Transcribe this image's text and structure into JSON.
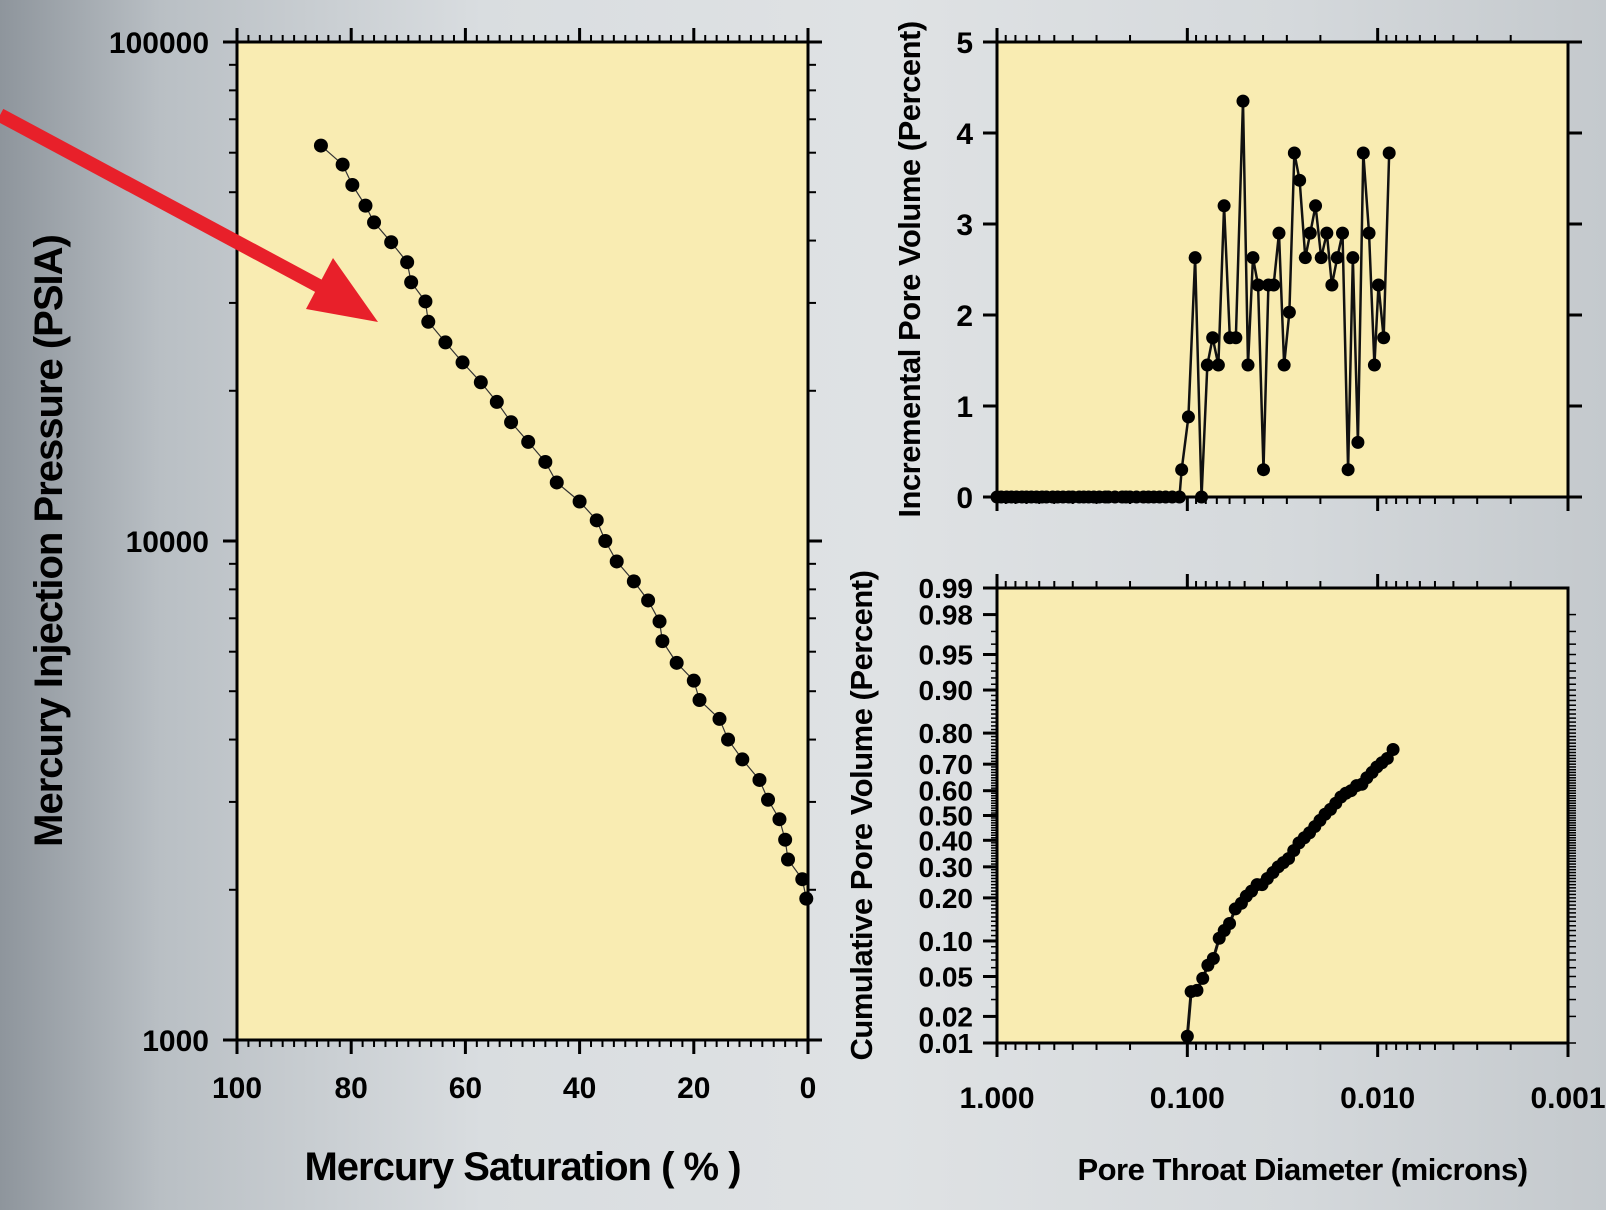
{
  "chart_data": [
    {
      "id": "capillary-pressure",
      "type": "scatter",
      "xlabel": "Mercury Saturation ( % )",
      "ylabel": "Mercury Injection Pressure (PSIA)",
      "xlim": [
        100,
        0
      ],
      "ylim": [
        1000,
        100000
      ],
      "yscale": "log",
      "x_ticks": [
        "100",
        "80",
        "60",
        "40",
        "20",
        "0"
      ],
      "y_ticks": [
        "1000",
        "10000",
        "100000"
      ],
      "grid": false,
      "points": [
        {
          "x": 85.3,
          "y": 62000
        },
        {
          "x": 81.5,
          "y": 56800
        },
        {
          "x": 79.8,
          "y": 51700
        },
        {
          "x": 77.5,
          "y": 47000
        },
        {
          "x": 76.0,
          "y": 43500
        },
        {
          "x": 73.0,
          "y": 39700
        },
        {
          "x": 70.2,
          "y": 36200
        },
        {
          "x": 69.5,
          "y": 33000
        },
        {
          "x": 67.0,
          "y": 30200
        },
        {
          "x": 66.5,
          "y": 27500
        },
        {
          "x": 63.5,
          "y": 25000
        },
        {
          "x": 60.5,
          "y": 22800
        },
        {
          "x": 57.3,
          "y": 20800
        },
        {
          "x": 54.5,
          "y": 19000
        },
        {
          "x": 52.0,
          "y": 17300
        },
        {
          "x": 49.0,
          "y": 15800
        },
        {
          "x": 46.0,
          "y": 14400
        },
        {
          "x": 44.0,
          "y": 13100
        },
        {
          "x": 40.0,
          "y": 12000
        },
        {
          "x": 37.0,
          "y": 11000
        },
        {
          "x": 35.5,
          "y": 10000
        },
        {
          "x": 33.5,
          "y": 9100
        },
        {
          "x": 30.5,
          "y": 8300
        },
        {
          "x": 28.0,
          "y": 7600
        },
        {
          "x": 26.0,
          "y": 6900
        },
        {
          "x": 25.5,
          "y": 6300
        },
        {
          "x": 23.0,
          "y": 5700
        },
        {
          "x": 20.0,
          "y": 5250
        },
        {
          "x": 19.0,
          "y": 4800
        },
        {
          "x": 15.5,
          "y": 4400
        },
        {
          "x": 14.0,
          "y": 4000
        },
        {
          "x": 11.5,
          "y": 3650
        },
        {
          "x": 8.5,
          "y": 3320
        },
        {
          "x": 7.0,
          "y": 3030
        },
        {
          "x": 5.0,
          "y": 2770
        },
        {
          "x": 4.0,
          "y": 2520
        },
        {
          "x": 3.5,
          "y": 2300
        },
        {
          "x": 1.0,
          "y": 2100
        },
        {
          "x": 0.3,
          "y": 1920
        }
      ]
    },
    {
      "id": "incremental-pore-volume",
      "type": "line",
      "xlabel": "Pore Throat Diameter (microns)",
      "ylabel": "Incremental Pore Volume (Percent)",
      "xlim": [
        1.0,
        0.001
      ],
      "xscale": "log",
      "ylim": [
        0,
        5
      ],
      "y_ticks": [
        "0",
        "1",
        "2",
        "3",
        "4",
        "5"
      ],
      "grid": false,
      "points": [
        {
          "x": 1.0,
          "y": 0
        },
        {
          "x": 0.95,
          "y": 0
        },
        {
          "x": 0.89,
          "y": 0
        },
        {
          "x": 0.84,
          "y": 0
        },
        {
          "x": 0.79,
          "y": 0
        },
        {
          "x": 0.74,
          "y": 0
        },
        {
          "x": 0.7,
          "y": 0
        },
        {
          "x": 0.66,
          "y": 0
        },
        {
          "x": 0.62,
          "y": 0
        },
        {
          "x": 0.58,
          "y": 0
        },
        {
          "x": 0.55,
          "y": 0
        },
        {
          "x": 0.51,
          "y": 0
        },
        {
          "x": 0.48,
          "y": 0
        },
        {
          "x": 0.45,
          "y": 0
        },
        {
          "x": 0.42,
          "y": 0
        },
        {
          "x": 0.4,
          "y": 0
        },
        {
          "x": 0.37,
          "y": 0
        },
        {
          "x": 0.35,
          "y": 0
        },
        {
          "x": 0.33,
          "y": 0
        },
        {
          "x": 0.31,
          "y": 0
        },
        {
          "x": 0.29,
          "y": 0
        },
        {
          "x": 0.27,
          "y": 0
        },
        {
          "x": 0.26,
          "y": 0
        },
        {
          "x": 0.24,
          "y": 0
        },
        {
          "x": 0.22,
          "y": 0
        },
        {
          "x": 0.21,
          "y": 0
        },
        {
          "x": 0.2,
          "y": 0
        },
        {
          "x": 0.185,
          "y": 0
        },
        {
          "x": 0.17,
          "y": 0
        },
        {
          "x": 0.16,
          "y": 0
        },
        {
          "x": 0.15,
          "y": 0
        },
        {
          "x": 0.14,
          "y": 0
        },
        {
          "x": 0.13,
          "y": 0
        },
        {
          "x": 0.12,
          "y": 0
        },
        {
          "x": 0.11,
          "y": 0
        },
        {
          "x": 0.1071,
          "y": 0.3
        },
        {
          "x": 0.0987,
          "y": 0.88
        },
        {
          "x": 0.091,
          "y": 2.63
        },
        {
          "x": 0.0842,
          "y": 0
        },
        {
          "x": 0.0785,
          "y": 1.45
        },
        {
          "x": 0.0736,
          "y": 1.75
        },
        {
          "x": 0.0687,
          "y": 1.45
        },
        {
          "x": 0.0641,
          "y": 3.2
        },
        {
          "x": 0.0598,
          "y": 1.75
        },
        {
          "x": 0.0556,
          "y": 1.75
        },
        {
          "x": 0.051,
          "y": 4.35
        },
        {
          "x": 0.048,
          "y": 1.45
        },
        {
          "x": 0.0452,
          "y": 2.63
        },
        {
          "x": 0.0425,
          "y": 2.33
        },
        {
          "x": 0.0398,
          "y": 0.3
        },
        {
          "x": 0.0375,
          "y": 2.33
        },
        {
          "x": 0.0352,
          "y": 2.33
        },
        {
          "x": 0.033,
          "y": 2.9
        },
        {
          "x": 0.031,
          "y": 1.45
        },
        {
          "x": 0.0291,
          "y": 2.03
        },
        {
          "x": 0.0274,
          "y": 3.78
        },
        {
          "x": 0.0257,
          "y": 3.48
        },
        {
          "x": 0.024,
          "y": 2.63
        },
        {
          "x": 0.0226,
          "y": 2.9
        },
        {
          "x": 0.0212,
          "y": 3.2
        },
        {
          "x": 0.0198,
          "y": 2.63
        },
        {
          "x": 0.0185,
          "y": 2.9
        },
        {
          "x": 0.0174,
          "y": 2.33
        },
        {
          "x": 0.0163,
          "y": 2.63
        },
        {
          "x": 0.0153,
          "y": 2.9
        },
        {
          "x": 0.0143,
          "y": 0.3
        },
        {
          "x": 0.0135,
          "y": 2.63
        },
        {
          "x": 0.0127,
          "y": 0.6
        },
        {
          "x": 0.0119,
          "y": 3.78
        },
        {
          "x": 0.0111,
          "y": 2.9
        },
        {
          "x": 0.0104,
          "y": 1.45
        },
        {
          "x": 0.0099,
          "y": 2.33
        },
        {
          "x": 0.0093,
          "y": 1.75
        },
        {
          "x": 0.0087,
          "y": 3.78
        }
      ]
    },
    {
      "id": "cumulative-pore-volume",
      "type": "line",
      "xlabel": "Pore Throat Diameter (microns)",
      "ylabel": "Cumulative Pore Volume (Percent)",
      "xlim": [
        1.0,
        0.001
      ],
      "xscale": "log",
      "yscale": "probability",
      "ylim": [
        0.01,
        0.99
      ],
      "y_ticks": [
        "0.99",
        "0.98",
        "0.95",
        "0.90",
        "0.80",
        "0.70",
        "0.60",
        "0.50",
        "0.40",
        "0.30",
        "0.20",
        "0.10",
        "0.05",
        "0.02",
        "0.01"
      ],
      "x_ticks": [
        "1.000",
        "0.100",
        "0.010",
        "0.001"
      ],
      "grid": false,
      "points": [
        {
          "x": 0.1,
          "y": 0.012
        },
        {
          "x": 0.0955,
          "y": 0.036
        },
        {
          "x": 0.089,
          "y": 0.037
        },
        {
          "x": 0.083,
          "y": 0.048
        },
        {
          "x": 0.078,
          "y": 0.063
        },
        {
          "x": 0.073,
          "y": 0.072
        },
        {
          "x": 0.068,
          "y": 0.105
        },
        {
          "x": 0.064,
          "y": 0.12
        },
        {
          "x": 0.06,
          "y": 0.135
        },
        {
          "x": 0.056,
          "y": 0.17
        },
        {
          "x": 0.052,
          "y": 0.185
        },
        {
          "x": 0.049,
          "y": 0.205
        },
        {
          "x": 0.046,
          "y": 0.22
        },
        {
          "x": 0.043,
          "y": 0.24
        },
        {
          "x": 0.0405,
          "y": 0.24
        },
        {
          "x": 0.038,
          "y": 0.26
        },
        {
          "x": 0.0355,
          "y": 0.28
        },
        {
          "x": 0.0333,
          "y": 0.3
        },
        {
          "x": 0.0313,
          "y": 0.315
        },
        {
          "x": 0.0294,
          "y": 0.33
        },
        {
          "x": 0.0276,
          "y": 0.36
        },
        {
          "x": 0.0259,
          "y": 0.39
        },
        {
          "x": 0.0243,
          "y": 0.41
        },
        {
          "x": 0.0228,
          "y": 0.43
        },
        {
          "x": 0.0214,
          "y": 0.455
        },
        {
          "x": 0.0201,
          "y": 0.48
        },
        {
          "x": 0.0189,
          "y": 0.505
        },
        {
          "x": 0.0177,
          "y": 0.525
        },
        {
          "x": 0.0166,
          "y": 0.55
        },
        {
          "x": 0.0156,
          "y": 0.575
        },
        {
          "x": 0.0147,
          "y": 0.59
        },
        {
          "x": 0.0138,
          "y": 0.6
        },
        {
          "x": 0.0129,
          "y": 0.62
        },
        {
          "x": 0.0121,
          "y": 0.625
        },
        {
          "x": 0.0114,
          "y": 0.65
        },
        {
          "x": 0.0107,
          "y": 0.67
        },
        {
          "x": 0.0101,
          "y": 0.69
        },
        {
          "x": 0.0095,
          "y": 0.705
        },
        {
          "x": 0.0089,
          "y": 0.72
        },
        {
          "x": 0.0083,
          "y": 0.75
        }
      ]
    }
  ],
  "decorations": {
    "plot_background": "#f9ecb2",
    "marker_color": "#000000",
    "arrow_color": "#e8202a"
  }
}
